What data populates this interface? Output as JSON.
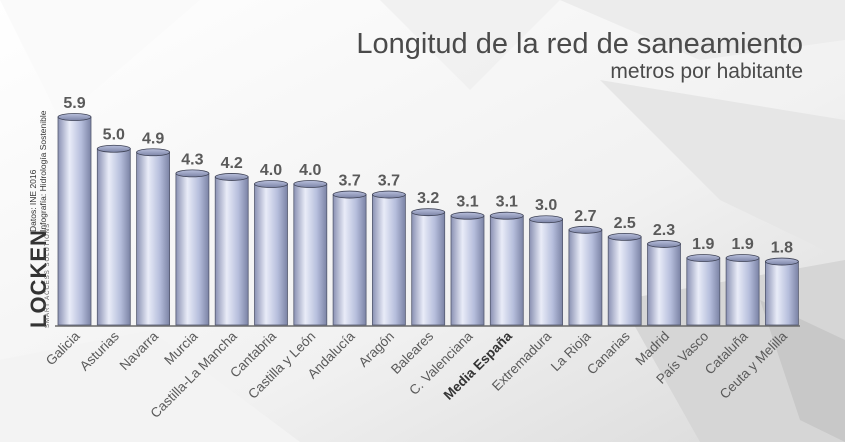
{
  "header": {
    "title": "Longitud de la red de saneamiento",
    "subtitle": "metros por habitante"
  },
  "brand": {
    "logo": "LOCKEN",
    "tagline": "SMART ACCESS SOLUTIONS",
    "source_line1": "Datos: INE 2016",
    "source_line2": "Infografía: Hidrología Sostenible"
  },
  "colors": {
    "bar_light": "#e4e8f6",
    "bar_mid": "#b3bbd9",
    "bar_dark": "#7c84a6",
    "label": "#5a5a5a",
    "highlight_label": "#333333"
  },
  "chart_data": {
    "type": "bar",
    "title": "Longitud de la red de saneamiento",
    "subtitle": "metros por habitante",
    "categories": [
      "Galicia",
      "Asturias",
      "Navarra",
      "Murcia",
      "Castilla-La Mancha",
      "Cantabria",
      "Castilla y León",
      "Andalucía",
      "Aragón",
      "Baleares",
      "C. Valenciana",
      "Media España",
      "Extremadura",
      "La Rioja",
      "Canarias",
      "Madrid",
      "País Vasco",
      "Cataluña",
      "Ceuta y Melilla"
    ],
    "values": [
      5.9,
      5.0,
      4.9,
      4.3,
      4.2,
      4.0,
      4.0,
      3.7,
      3.7,
      3.2,
      3.1,
      3.1,
      3.0,
      2.7,
      2.5,
      2.3,
      1.9,
      1.9,
      1.8
    ],
    "value_labels": [
      "5.9",
      "5.0",
      "4.9",
      "4.3",
      "4.2",
      "4.0",
      "4.0",
      "3.7",
      "3.7",
      "3.2",
      "3.1",
      "3.1",
      "3.0",
      "2.7",
      "2.5",
      "2.3",
      "1.9",
      "1.9",
      "1.8"
    ],
    "highlight": "Media España",
    "ylim": [
      0,
      5.9
    ],
    "grid": false,
    "legend": "none"
  }
}
